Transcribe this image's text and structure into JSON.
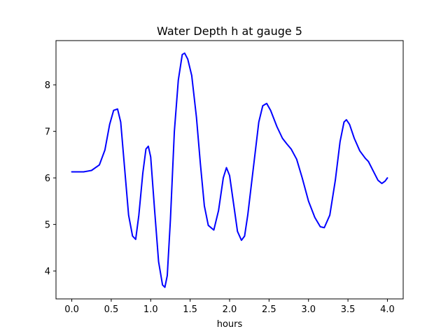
{
  "chart_data": {
    "type": "line",
    "title": "Water Depth h at gauge 5",
    "xlabel": "hours",
    "ylabel": "",
    "xlim": [
      -0.2,
      4.2
    ],
    "ylim": [
      3.4,
      8.95
    ],
    "xticks": [
      0.0,
      0.5,
      1.0,
      1.5,
      2.0,
      2.5,
      3.0,
      3.5,
      4.0
    ],
    "xtick_labels": [
      "0.0",
      "0.5",
      "1.0",
      "1.5",
      "2.0",
      "2.5",
      "3.0",
      "3.5",
      "4.0"
    ],
    "yticks": [
      4,
      5,
      6,
      7,
      8
    ],
    "ytick_labels": [
      "4",
      "5",
      "6",
      "7",
      "8"
    ],
    "grid": false,
    "series": [
      {
        "color": "#0000ff",
        "x": [
          0.0,
          0.15,
          0.25,
          0.35,
          0.42,
          0.48,
          0.53,
          0.58,
          0.62,
          0.67,
          0.72,
          0.77,
          0.81,
          0.85,
          0.9,
          0.94,
          0.97,
          1.0,
          1.05,
          1.1,
          1.15,
          1.18,
          1.21,
          1.25,
          1.3,
          1.35,
          1.4,
          1.43,
          1.47,
          1.52,
          1.58,
          1.63,
          1.68,
          1.73,
          1.8,
          1.86,
          1.92,
          1.96,
          2.0,
          2.05,
          2.1,
          2.15,
          2.19,
          2.23,
          2.3,
          2.37,
          2.42,
          2.47,
          2.52,
          2.6,
          2.67,
          2.73,
          2.78,
          2.85,
          2.92,
          3.0,
          3.08,
          3.15,
          3.2,
          3.27,
          3.34,
          3.4,
          3.45,
          3.48,
          3.52,
          3.58,
          3.65,
          3.72,
          3.76,
          3.82,
          3.88,
          3.93,
          3.97,
          4.0
        ],
        "y": [
          6.13,
          6.13,
          6.16,
          6.28,
          6.6,
          7.15,
          7.45,
          7.48,
          7.2,
          6.2,
          5.2,
          4.75,
          4.68,
          5.2,
          6.1,
          6.62,
          6.68,
          6.45,
          5.3,
          4.2,
          3.7,
          3.65,
          3.9,
          5.1,
          7.0,
          8.1,
          8.65,
          8.68,
          8.55,
          8.2,
          7.3,
          6.3,
          5.4,
          4.98,
          4.88,
          5.3,
          6.0,
          6.22,
          6.05,
          5.45,
          4.85,
          4.66,
          4.75,
          5.2,
          6.2,
          7.2,
          7.55,
          7.6,
          7.45,
          7.1,
          6.85,
          6.72,
          6.62,
          6.4,
          6.0,
          5.5,
          5.15,
          4.95,
          4.93,
          5.2,
          5.95,
          6.78,
          7.2,
          7.25,
          7.15,
          6.85,
          6.58,
          6.42,
          6.35,
          6.15,
          5.95,
          5.88,
          5.93,
          6.0
        ]
      }
    ]
  }
}
